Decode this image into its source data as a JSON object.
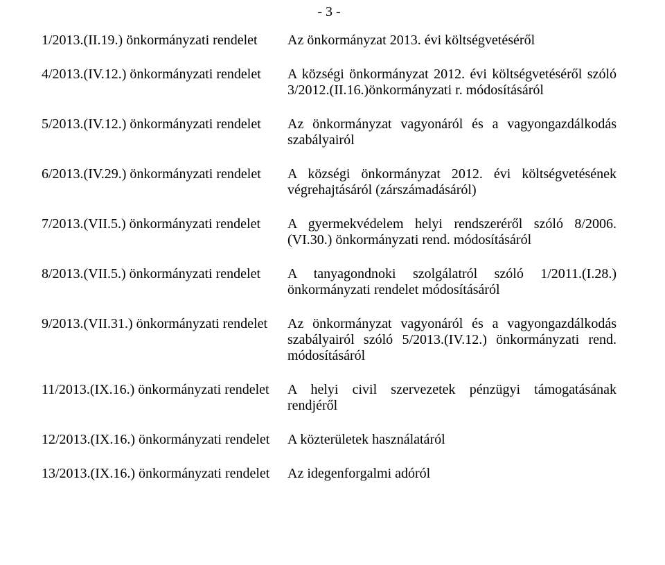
{
  "page_number": "- 3 -",
  "rows": [
    {
      "left": "1/2013.(II.19.) önkormányzati rendelet",
      "right": "Az önkormányzat 2013. évi költségvetéséről",
      "justify_last": false
    },
    {
      "left": "4/2013.(IV.12.) önkormányzati rendelet",
      "right": "A községi önkormányzat 2012. évi költségvetéséről szóló 3/2012.(II.16.)önkormányzati r. módosításáról",
      "justify_last": false
    },
    {
      "left": "5/2013.(IV.12.) önkormányzati rendelet",
      "right": "Az önkormányzat vagyonáról és a vagyongazdálkodás szabályairól",
      "justify_last": false
    },
    {
      "left": "6/2013.(IV.29.) önkormányzati rendelet",
      "right": "A községi önkormányzat 2012. évi költségvetésének végrehajtásáról (zárszámadásáról)",
      "justify_last": false
    },
    {
      "left": "7/2013.(VII.5.) önkormányzati rendelet",
      "right": "A gyermekvédelem helyi rendszeréről szóló 8/2006.(VI.30.) önkormányzati rend. módosításáról",
      "justify_last": false
    },
    {
      "left": "8/2013.(VII.5.) önkormányzati rendelet",
      "right": "A tanyagondnoki szolgálatról szóló 1/2011.(I.28.) önkormányzati rendelet módosításáról",
      "justify_last": false
    },
    {
      "left": "9/2013.(VII.31.) önkormányzati rendelet",
      "right": "Az önkormányzat vagyonáról és a vagyongazdálkodás szabályairól szóló 5/2013.(IV.12.) önkormányzati rend. módosításáról",
      "justify_last": false
    },
    {
      "left": "11/2013.(IX.16.) önkormányzati rendelet",
      "right": "A helyi civil szervezetek pénzügyi támogatásának rendjéről",
      "justify_last": false
    },
    {
      "left": "12/2013.(IX.16.) önkormányzati rendelet",
      "right": "A közterületek használatáról",
      "justify_last": false
    },
    {
      "left": "13/2013.(IX.16.) önkormányzati rendelet",
      "right": "Az idegenforgalmi adóról",
      "justify_last": false
    }
  ]
}
